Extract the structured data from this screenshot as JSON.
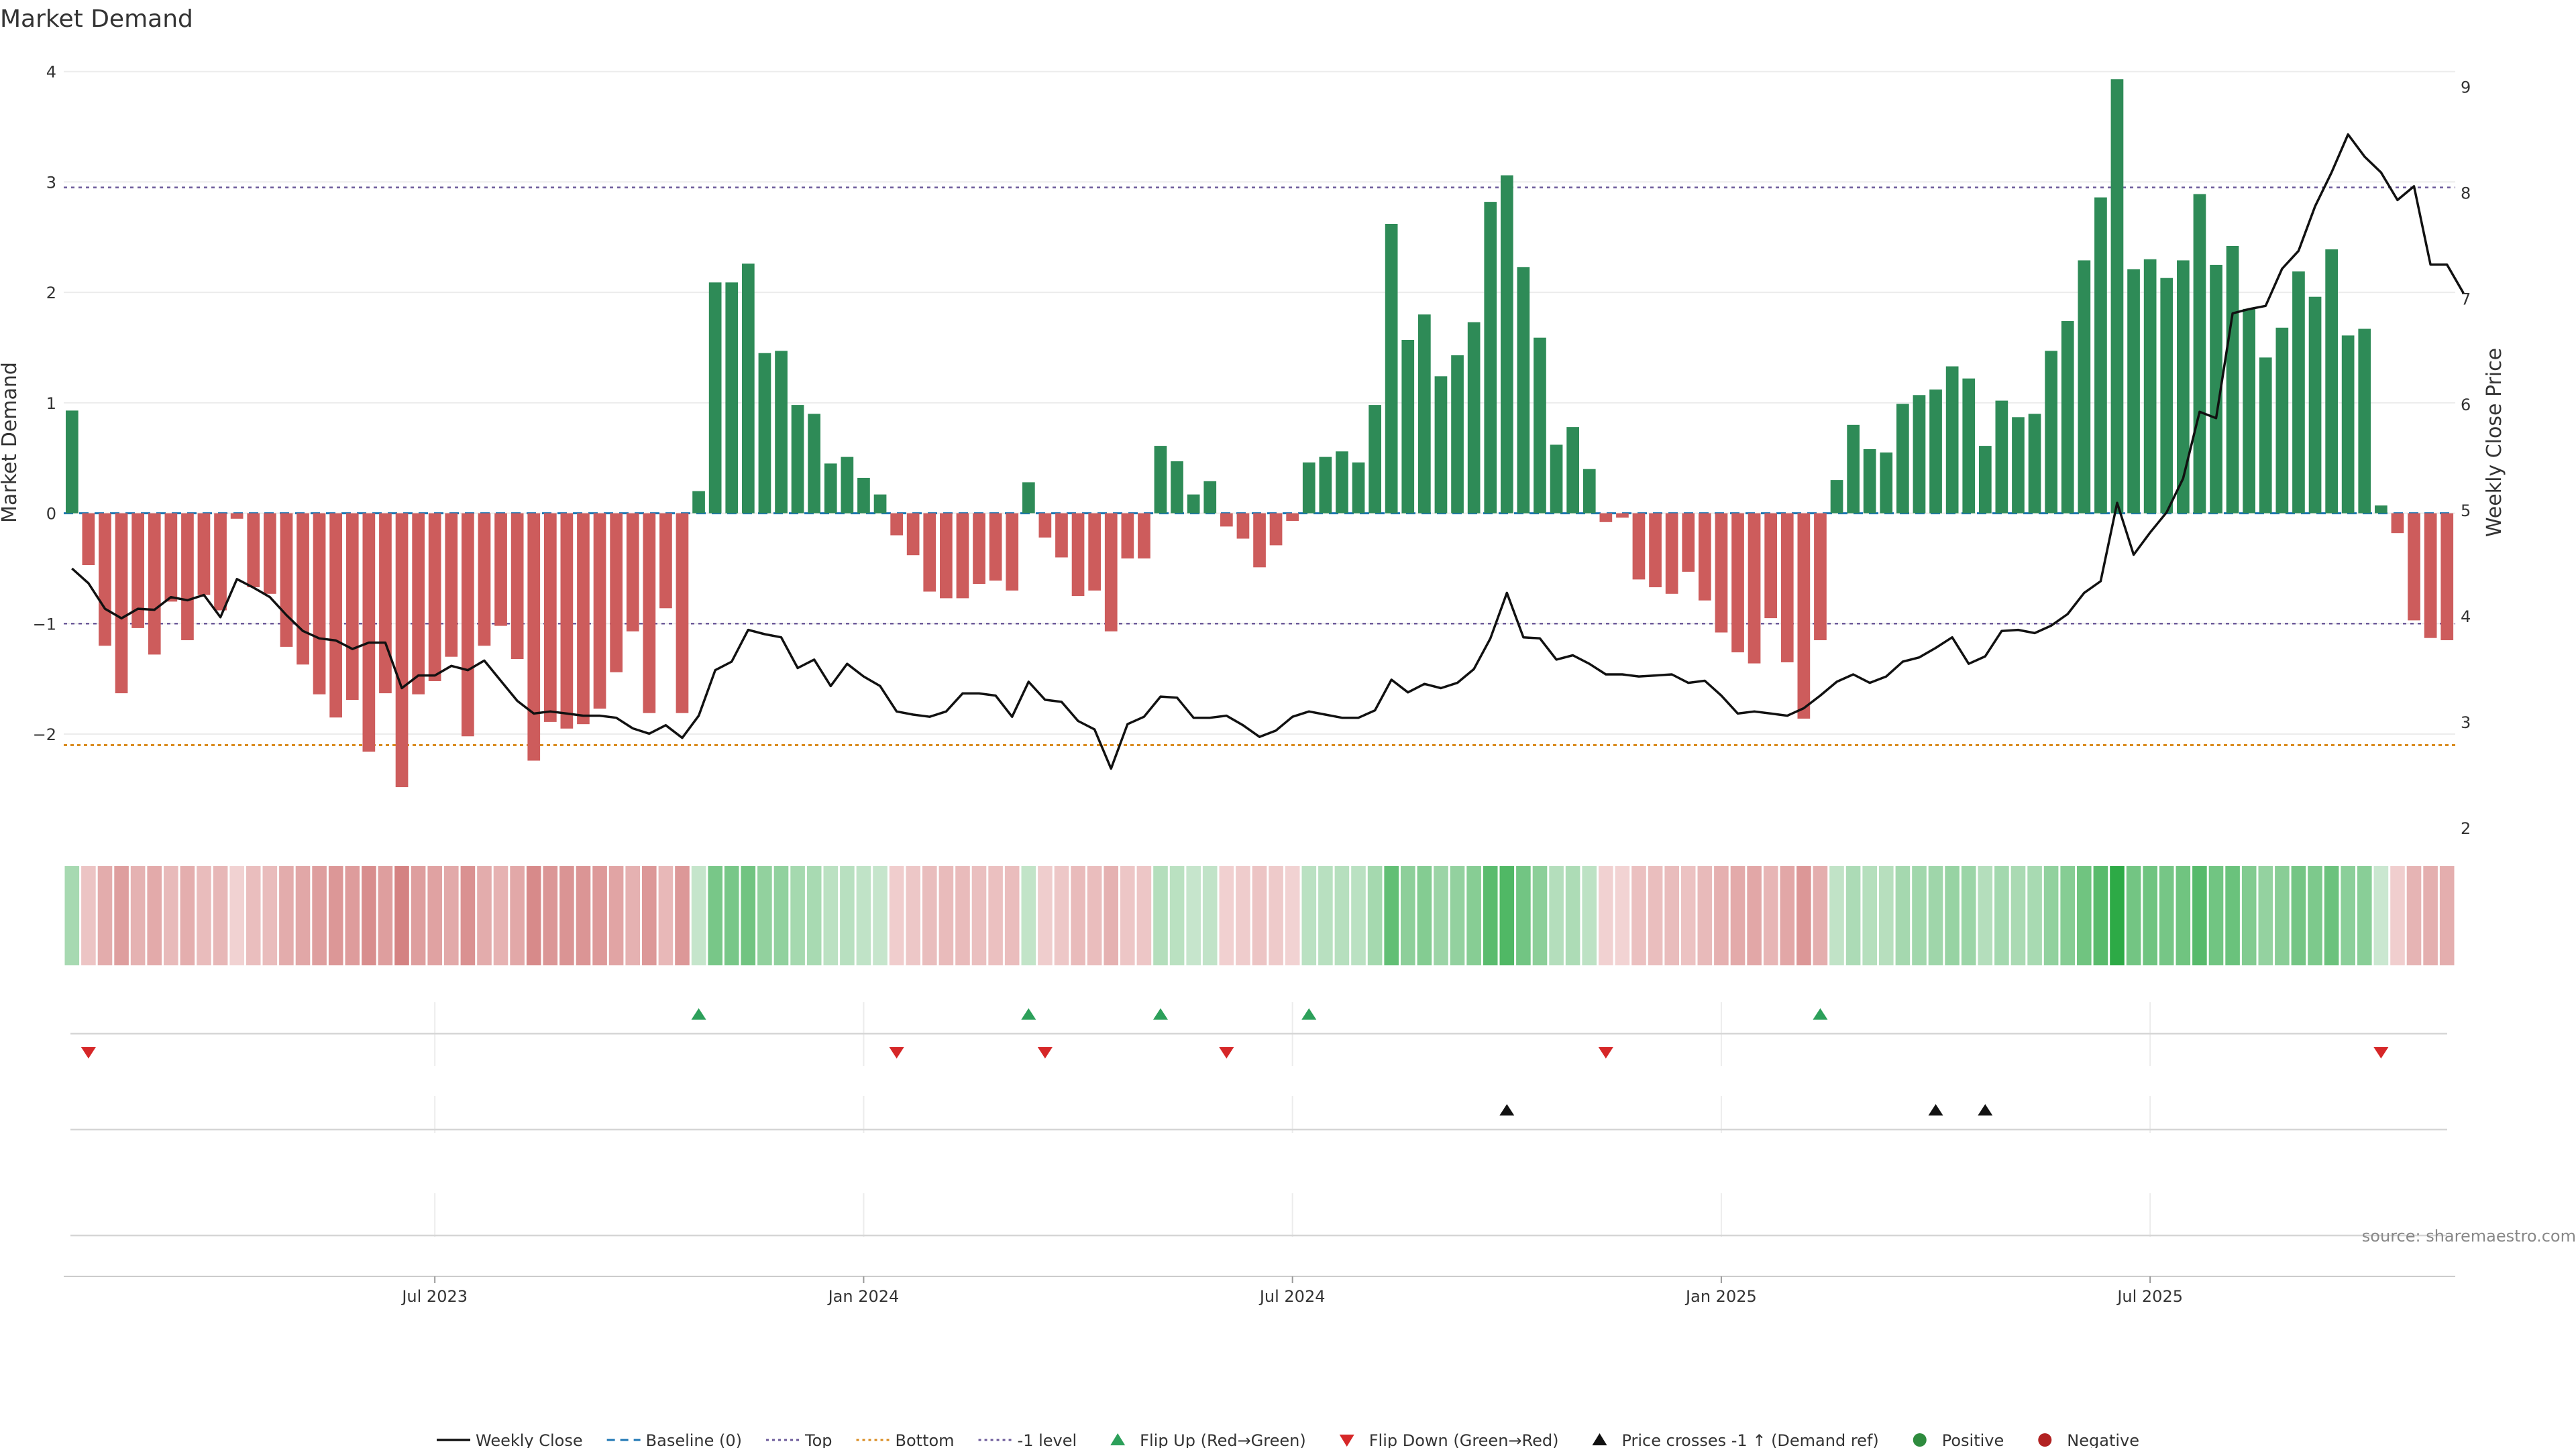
{
  "chart_data": {
    "type": "bar",
    "title": "Market Demand",
    "ylabel": "Market Demand",
    "y2label": "Weekly Close Price",
    "ylim": [
      -2.85,
      4.15
    ],
    "y2lim": [
      2.0,
      9.3
    ],
    "yticks": [
      -2,
      -1,
      0,
      1,
      2,
      3,
      4
    ],
    "y2ticks": [
      2,
      3,
      4,
      5,
      6,
      7,
      8,
      9
    ],
    "reference_lines": {
      "baseline": 0,
      "top": 2.95,
      "bottom": -2.1,
      "minus_one": -1
    },
    "x_labels": [
      "Jul 2023",
      "Jan 2024",
      "Jul 2024",
      "Jan 2025",
      "Jul 2025"
    ],
    "x_label_weeks": [
      22,
      48,
      74,
      100,
      126
    ],
    "demand": [
      0.93,
      -0.47,
      -1.2,
      -1.63,
      -1.04,
      -1.28,
      -0.8,
      -1.15,
      -0.74,
      -0.88,
      -0.05,
      -0.67,
      -0.73,
      -1.21,
      -1.37,
      -1.64,
      -1.85,
      -1.69,
      -2.16,
      -1.63,
      -2.48,
      -1.64,
      -1.52,
      -1.3,
      -2.02,
      -1.2,
      -1.02,
      -1.32,
      -2.24,
      -1.89,
      -1.95,
      -1.91,
      -1.77,
      -1.44,
      -1.07,
      -1.81,
      -0.86,
      -1.81,
      0.2,
      2.09,
      2.09,
      2.26,
      1.45,
      1.47,
      0.98,
      0.9,
      0.45,
      0.51,
      0.32,
      0.17,
      -0.2,
      -0.38,
      -0.71,
      -0.77,
      -0.77,
      -0.64,
      -0.61,
      -0.7,
      0.28,
      -0.22,
      -0.4,
      -0.75,
      -0.7,
      -1.07,
      -0.41,
      -0.41,
      0.61,
      0.47,
      0.17,
      0.29,
      -0.12,
      -0.23,
      -0.49,
      -0.29,
      -0.07,
      0.46,
      0.51,
      0.56,
      0.46,
      0.98,
      2.62,
      1.57,
      1.8,
      1.24,
      1.43,
      1.73,
      2.82,
      3.06,
      2.23,
      1.59,
      0.62,
      0.78,
      0.4,
      -0.08,
      -0.04,
      -0.6,
      -0.67,
      -0.73,
      -0.53,
      -0.79,
      -1.08,
      -1.26,
      -1.36,
      -0.95,
      -1.35,
      -1.86,
      -1.15,
      0.3,
      0.8,
      0.58,
      0.55,
      0.99,
      1.07,
      1.12,
      1.33,
      1.22,
      0.61,
      1.02,
      0.87,
      0.9,
      1.47,
      1.74,
      2.29,
      2.86,
      3.93,
      2.21,
      2.3,
      2.13,
      2.29,
      2.89,
      2.25,
      2.42,
      1.85,
      1.41,
      1.68,
      2.19,
      1.96,
      2.39,
      1.61,
      1.67,
      0.07,
      -0.18,
      -0.97,
      -1.13,
      -1.15
    ],
    "price": [
      4.45,
      4.31,
      4.07,
      3.98,
      4.07,
      4.06,
      4.18,
      4.15,
      4.2,
      3.99,
      4.35,
      4.27,
      4.18,
      4.01,
      3.86,
      3.79,
      3.77,
      3.69,
      3.75,
      3.75,
      3.32,
      3.44,
      3.44,
      3.53,
      3.49,
      3.58,
      3.39,
      3.2,
      3.08,
      3.1,
      3.08,
      3.06,
      3.06,
      3.04,
      2.94,
      2.89,
      2.97,
      2.85,
      3.06,
      3.49,
      3.57,
      3.87,
      3.83,
      3.8,
      3.51,
      3.59,
      3.34,
      3.55,
      3.43,
      3.34,
      3.1,
      3.07,
      3.05,
      3.1,
      3.27,
      3.27,
      3.25,
      3.05,
      3.38,
      3.21,
      3.19,
      3.01,
      2.93,
      2.56,
      2.98,
      3.05,
      3.24,
      3.23,
      3.04,
      3.04,
      3.06,
      2.97,
      2.86,
      2.92,
      3.05,
      3.1,
      3.07,
      3.04,
      3.04,
      3.11,
      3.4,
      3.28,
      3.36,
      3.32,
      3.37,
      3.5,
      3.79,
      4.22,
      3.8,
      3.79,
      3.59,
      3.63,
      3.55,
      3.45,
      3.45,
      3.43,
      3.44,
      3.45,
      3.37,
      3.39,
      3.25,
      3.08,
      3.1,
      3.08,
      3.06,
      3.13,
      3.25,
      3.38,
      3.45,
      3.37,
      3.43,
      3.57,
      3.61,
      3.7,
      3.8,
      3.55,
      3.62,
      3.86,
      3.87,
      3.84,
      3.91,
      4.02,
      4.22,
      4.33,
      5.07,
      4.58,
      4.79,
      4.98,
      5.3,
      5.93,
      5.87,
      6.86,
      6.9,
      6.93,
      7.28,
      7.45,
      7.87,
      8.19,
      8.55,
      8.34,
      8.19,
      7.93,
      8.06,
      7.32,
      7.32,
      7.05
    ]
  },
  "flip_up_weeks": [
    38,
    58,
    66,
    75,
    106
  ],
  "flip_down_weeks": [
    1,
    50,
    59,
    70,
    93,
    140
  ],
  "price_cross_weeks": [
    87,
    113,
    116
  ],
  "legend": [
    {
      "label": "Weekly Close",
      "kind": "line",
      "color": "#111111"
    },
    {
      "label": "Baseline (0)",
      "kind": "dash",
      "color": "#1f77b4"
    },
    {
      "label": "Top",
      "kind": "dot",
      "color": "#6c5a9a"
    },
    {
      "label": "Bottom",
      "kind": "dot",
      "color": "#d98b1f"
    },
    {
      "label": "-1 level",
      "kind": "dot",
      "color": "#6c5a9a"
    },
    {
      "label": "Flip Up (Red→Green)",
      "kind": "tri-up",
      "color": "#2ca05a"
    },
    {
      "label": "Flip Down (Green→Red)",
      "kind": "tri-down",
      "color": "#d62728"
    },
    {
      "label": "Price crosses -1 ↑ (Demand ref)",
      "kind": "tri-up",
      "color": "#111111"
    },
    {
      "label": "Positive",
      "kind": "dot-marker",
      "color": "#2e8b3e"
    },
    {
      "label": "Negative",
      "kind": "dot-marker",
      "color": "#b22222"
    }
  ],
  "source": "source: sharemaestro.com",
  "colors": {
    "positive": "#2e8b57",
    "negative": "#cd5c5c",
    "grid": "#eeeeee"
  }
}
